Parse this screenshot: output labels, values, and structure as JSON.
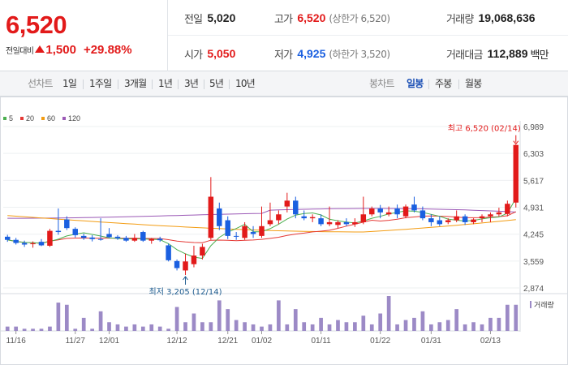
{
  "quote": {
    "price": "6,520",
    "change_label": "전일대비",
    "change_value": "1,500",
    "change_pct": "+29.88%",
    "prev_close_label": "전일",
    "prev_close": "5,020",
    "open_label": "시가",
    "open": "5,050",
    "high_label": "고가",
    "high": "6,520",
    "upper_limit": "(상한가 6,520)",
    "low_label": "저가",
    "low": "4,925",
    "lower_limit": "(하한가 3,520)",
    "volume_label": "거래량",
    "volume": "19,068,636",
    "amount_label": "거래대금",
    "amount": "112,889",
    "amount_unit": "백만"
  },
  "toolbar": {
    "line_label": "선차트",
    "line_periods": [
      "1일",
      "1주일",
      "3개월",
      "1년",
      "3년",
      "5년",
      "10년"
    ],
    "candle_label": "봉차트",
    "candle_periods": [
      "일봉",
      "주봉",
      "월봉"
    ],
    "candle_active": "일봉"
  },
  "colors": {
    "up": "#e21a1a",
    "down": "#1a5fe0",
    "ma5": "#4caf50",
    "ma20": "#e53935",
    "ma60": "#f39c12",
    "ma120": "#9b59b6",
    "volume": "#9c8ac6"
  },
  "chart_data": {
    "type": "candlestick",
    "legend": [
      {
        "name": "5",
        "color": "#4caf50"
      },
      {
        "name": "20",
        "color": "#e53935"
      },
      {
        "name": "60",
        "color": "#f39c12"
      },
      {
        "name": "120",
        "color": "#9b59b6"
      }
    ],
    "y_ticks": [
      6989,
      6303,
      5617,
      4931,
      4245,
      3559,
      2874
    ],
    "y_labels": [
      "6,989",
      "6,303",
      "5,617",
      "4,931",
      "4,245",
      "3,559",
      "2,874"
    ],
    "ylim": [
      2874,
      6989
    ],
    "x_tick_labels": [
      {
        "index": 1,
        "label": "11/16"
      },
      {
        "index": 8,
        "label": "11/27"
      },
      {
        "index": 12,
        "label": "12/01"
      },
      {
        "index": 20,
        "label": "12/12"
      },
      {
        "index": 26,
        "label": "12/21"
      },
      {
        "index": 30,
        "label": "01/02"
      },
      {
        "index": 37,
        "label": "01/11"
      },
      {
        "index": 44,
        "label": "01/22"
      },
      {
        "index": 50,
        "label": "01/31"
      },
      {
        "index": 57,
        "label": "02/13"
      }
    ],
    "candles": [
      {
        "date": "11/15",
        "o": 4180,
        "h": 4230,
        "l": 4050,
        "c": 4100
      },
      {
        "date": "11/16",
        "o": 4100,
        "h": 4150,
        "l": 3980,
        "c": 4020
      },
      {
        "date": "11/17",
        "o": 4020,
        "h": 4080,
        "l": 3920,
        "c": 3980
      },
      {
        "date": "11/20",
        "o": 3990,
        "h": 4060,
        "l": 3900,
        "c": 4010
      },
      {
        "date": "11/21",
        "o": 4050,
        "h": 4120,
        "l": 3940,
        "c": 3960
      },
      {
        "date": "11/22",
        "o": 3950,
        "h": 4380,
        "l": 3920,
        "c": 4330
      },
      {
        "date": "11/23",
        "o": 4330,
        "h": 4900,
        "l": 4230,
        "c": 4300
      },
      {
        "date": "11/24",
        "o": 4620,
        "h": 4700,
        "l": 4350,
        "c": 4400
      },
      {
        "date": "11/27",
        "o": 4380,
        "h": 4420,
        "l": 4160,
        "c": 4220
      },
      {
        "date": "11/28",
        "o": 4200,
        "h": 4260,
        "l": 4100,
        "c": 4150
      },
      {
        "date": "11/29",
        "o": 4160,
        "h": 4220,
        "l": 4060,
        "c": 4120
      },
      {
        "date": "11/30",
        "o": 4120,
        "h": 4650,
        "l": 4080,
        "c": 4100
      },
      {
        "date": "12/01",
        "o": 4250,
        "h": 4400,
        "l": 4150,
        "c": 4170
      },
      {
        "date": "12/04",
        "o": 4180,
        "h": 4220,
        "l": 4100,
        "c": 4140
      },
      {
        "date": "12/05",
        "o": 4150,
        "h": 4200,
        "l": 4050,
        "c": 4080
      },
      {
        "date": "12/06",
        "o": 4080,
        "h": 4250,
        "l": 4050,
        "c": 4150
      },
      {
        "date": "12/07",
        "o": 4300,
        "h": 4330,
        "l": 4050,
        "c": 4080
      },
      {
        "date": "12/08",
        "o": 4080,
        "h": 4150,
        "l": 4000,
        "c": 4120
      },
      {
        "date": "12/11",
        "o": 4130,
        "h": 4180,
        "l": 4050,
        "c": 4090
      },
      {
        "date": "12/12",
        "o": 3960,
        "h": 4000,
        "l": 3550,
        "c": 3580
      },
      {
        "date": "12/13",
        "o": 3560,
        "h": 3600,
        "l": 3320,
        "c": 3380
      },
      {
        "date": "12/14",
        "o": 3320,
        "h": 3750,
        "l": 3205,
        "c": 3550
      },
      {
        "date": "12/15",
        "o": 3480,
        "h": 3950,
        "l": 3400,
        "c": 3700
      },
      {
        "date": "12/18",
        "o": 3700,
        "h": 4000,
        "l": 3600,
        "c": 3920
      },
      {
        "date": "12/19",
        "o": 4150,
        "h": 5700,
        "l": 4100,
        "c": 5200
      },
      {
        "date": "12/20",
        "o": 4900,
        "h": 5050,
        "l": 4350,
        "c": 4450
      },
      {
        "date": "12/21",
        "o": 4600,
        "h": 4700,
        "l": 4120,
        "c": 4200
      },
      {
        "date": "12/22",
        "o": 4200,
        "h": 4300,
        "l": 4100,
        "c": 4180
      },
      {
        "date": "12/26",
        "o": 4150,
        "h": 4550,
        "l": 4100,
        "c": 4450
      },
      {
        "date": "12/27",
        "o": 4300,
        "h": 4450,
        "l": 4150,
        "c": 4250
      },
      {
        "date": "12/28",
        "o": 4200,
        "h": 4950,
        "l": 4150,
        "c": 4450
      },
      {
        "date": "01/02",
        "o": 4500,
        "h": 5050,
        "l": 4450,
        "c": 4600
      },
      {
        "date": "01/03",
        "o": 4600,
        "h": 4850,
        "l": 4500,
        "c": 4750
      },
      {
        "date": "01/04",
        "o": 4950,
        "h": 5300,
        "l": 4800,
        "c": 5100
      },
      {
        "date": "01/05",
        "o": 5100,
        "h": 5200,
        "l": 4650,
        "c": 4750
      },
      {
        "date": "01/08",
        "o": 4700,
        "h": 4850,
        "l": 4600,
        "c": 4650
      },
      {
        "date": "01/09",
        "o": 4650,
        "h": 4750,
        "l": 4550,
        "c": 4680
      },
      {
        "date": "01/10",
        "o": 4650,
        "h": 4750,
        "l": 4450,
        "c": 4500
      },
      {
        "date": "01/11",
        "o": 4500,
        "h": 4950,
        "l": 4450,
        "c": 4550
      },
      {
        "date": "01/12",
        "o": 4480,
        "h": 4600,
        "l": 4400,
        "c": 4550
      },
      {
        "date": "01/15",
        "o": 4550,
        "h": 4650,
        "l": 4450,
        "c": 4500
      },
      {
        "date": "01/16",
        "o": 4500,
        "h": 4650,
        "l": 4430,
        "c": 4550
      },
      {
        "date": "01/17",
        "o": 4550,
        "h": 5200,
        "l": 4500,
        "c": 4750
      },
      {
        "date": "01/18",
        "o": 4750,
        "h": 4950,
        "l": 4700,
        "c": 4900
      },
      {
        "date": "01/19",
        "o": 4900,
        "h": 4990,
        "l": 4650,
        "c": 4800
      },
      {
        "date": "01/22",
        "o": 4750,
        "h": 4950,
        "l": 4700,
        "c": 4800
      },
      {
        "date": "01/23",
        "o": 4900,
        "h": 5000,
        "l": 4650,
        "c": 4750
      },
      {
        "date": "01/24",
        "o": 4700,
        "h": 5000,
        "l": 4650,
        "c": 4950
      },
      {
        "date": "01/25",
        "o": 5000,
        "h": 5200,
        "l": 4800,
        "c": 4850
      },
      {
        "date": "01/26",
        "o": 4850,
        "h": 4950,
        "l": 4600,
        "c": 4650
      },
      {
        "date": "01/29",
        "o": 4650,
        "h": 4750,
        "l": 4450,
        "c": 4550
      },
      {
        "date": "01/30",
        "o": 4600,
        "h": 4700,
        "l": 4450,
        "c": 4500
      },
      {
        "date": "01/31",
        "o": 4550,
        "h": 4650,
        "l": 4500,
        "c": 4600
      },
      {
        "date": "02/01",
        "o": 4600,
        "h": 4850,
        "l": 4550,
        "c": 4700
      },
      {
        "date": "02/02",
        "o": 4700,
        "h": 4750,
        "l": 4480,
        "c": 4550
      },
      {
        "date": "02/05",
        "o": 4550,
        "h": 4650,
        "l": 4500,
        "c": 4620
      },
      {
        "date": "02/06",
        "o": 4650,
        "h": 4750,
        "l": 4550,
        "c": 4700
      },
      {
        "date": "02/07",
        "o": 4700,
        "h": 4800,
        "l": 4550,
        "c": 4750
      },
      {
        "date": "02/08",
        "o": 4750,
        "h": 4920,
        "l": 4700,
        "c": 4800
      },
      {
        "date": "02/13",
        "o": 4760,
        "h": 5100,
        "l": 4700,
        "c": 5020
      },
      {
        "date": "02/14",
        "o": 5050,
        "h": 6520,
        "l": 4925,
        "c": 6520
      }
    ],
    "volumes": [
      2,
      2,
      1,
      1,
      1,
      2,
      13,
      12,
      1,
      6,
      1,
      9,
      4,
      3,
      2,
      3,
      2,
      3,
      2,
      1,
      11,
      4,
      8,
      4,
      4,
      14,
      10,
      5,
      4,
      3,
      2,
      3,
      14,
      3,
      10,
      4,
      3,
      6,
      3,
      5,
      4,
      4,
      7,
      3,
      8,
      16,
      3,
      5,
      6,
      9,
      3,
      4,
      5,
      10,
      3,
      4,
      3,
      6,
      6,
      12,
      12
    ],
    "annotations": {
      "high": "최고 6,520 (02/14)",
      "low": "최저 3,205 (12/14)"
    },
    "volume_legend": "거래량"
  }
}
